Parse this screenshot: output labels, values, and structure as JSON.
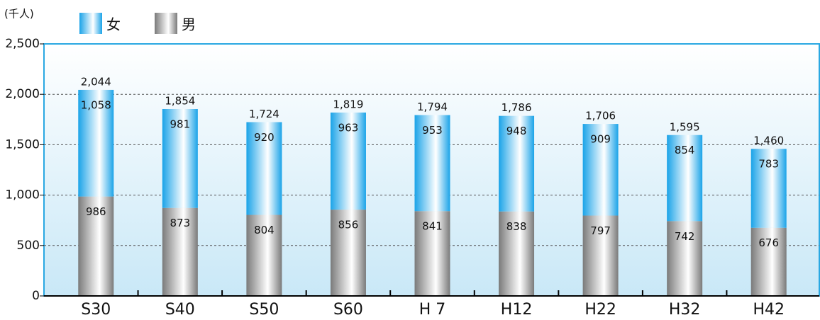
{
  "chart_data": {
    "type": "stacked_bar",
    "y_axis_label": "(千人)",
    "categories": [
      "S30",
      "S40",
      "S50",
      "S60",
      "H 7",
      "H12",
      "H22",
      "H32",
      "H42"
    ],
    "series": [
      {
        "name": "男",
        "color": "#7a7a7a",
        "values": [
          986,
          873,
          804,
          856,
          841,
          838,
          797,
          742,
          676
        ]
      },
      {
        "name": "女",
        "color": "#1aa3e8",
        "values": [
          1058,
          981,
          920,
          963,
          953,
          948,
          909,
          854,
          783
        ],
        "value_labels": [
          "1,058",
          "981",
          "920",
          "963",
          "953",
          "948",
          "909",
          "854",
          "783"
        ]
      }
    ],
    "totals": [
      2044,
      1854,
      1724,
      1819,
      1794,
      1786,
      1706,
      1595,
      1460
    ],
    "total_labels": [
      "2,044",
      "1,854",
      "1,724",
      "1,819",
      "1,794",
      "1,786",
      "1,706",
      "1,595",
      "1,460"
    ],
    "ylim": [
      0,
      2500
    ],
    "yticks": [
      0,
      500,
      {
        "value": 1000,
        "label": "1,000"
      },
      {
        "value": 1500,
        "label": "1,500"
      },
      {
        "value": 2000,
        "label": "2,000"
      },
      {
        "value": 2500,
        "label": "2,500"
      }
    ],
    "grid": true
  }
}
